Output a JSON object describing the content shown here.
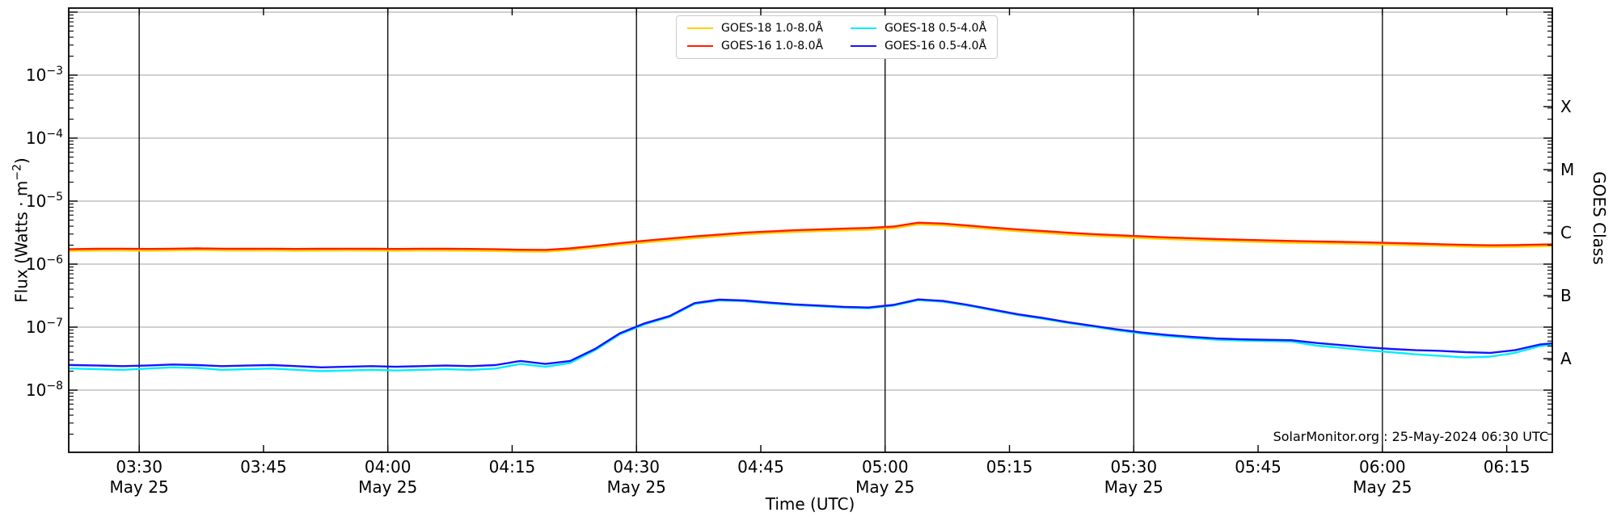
{
  "figure": {
    "xlabel": "Time (UTC)",
    "ylabel": {
      "pre": "Flux (Watts · m",
      "sup": "−2",
      "post": ")"
    },
    "right_axis_label": "GOES Class",
    "attribution": "SolarMonitor.org : 25-May-2024 06:30 UTC"
  },
  "legend": {
    "items": [
      {
        "label": "GOES-18 1.0-8.0Å",
        "color": "#ffd000"
      },
      {
        "label": "GOES-16 1.0-8.0Å",
        "color": "#ff1e00"
      },
      {
        "label": "GOES-18 0.5-4.0Å",
        "color": "#00eeff"
      },
      {
        "label": "GOES-16 0.5-4.0Å",
        "color": "#1515ff"
      }
    ]
  },
  "chart_data": {
    "type": "line",
    "title": "",
    "xlabel": "Time (UTC)",
    "ylabel": "Flux (Watts · m−2)",
    "x_axis_date": "May 25",
    "x_range_minutes": [
      201.5,
      380.5
    ],
    "ylim": [
      1e-09,
      0.0116
    ],
    "y_scale": "log",
    "grid": {
      "horizontal_color": "#b3b3b3",
      "vertical_color": "#000000"
    },
    "x_ticks": [
      {
        "t": 210,
        "label": "03:30",
        "sub": "May 25"
      },
      {
        "t": 225,
        "label": "03:45"
      },
      {
        "t": 240,
        "label": "04:00",
        "sub": "May 25"
      },
      {
        "t": 255,
        "label": "04:15"
      },
      {
        "t": 270,
        "label": "04:30",
        "sub": "May 25"
      },
      {
        "t": 285,
        "label": "04:45"
      },
      {
        "t": 300,
        "label": "05:00",
        "sub": "May 25"
      },
      {
        "t": 315,
        "label": "05:15"
      },
      {
        "t": 330,
        "label": "05:30",
        "sub": "May 25"
      },
      {
        "t": 345,
        "label": "05:45"
      },
      {
        "t": 360,
        "label": "06:00",
        "sub": "May 25"
      },
      {
        "t": 375,
        "label": "06:15"
      }
    ],
    "y_tick_exponents": [
      -3,
      -4,
      -5,
      -6,
      -7,
      -8
    ],
    "y_gridline_exponents": [
      -2,
      -3,
      -4,
      -5,
      -6,
      -7,
      -8
    ],
    "goes_classes": [
      {
        "label": "X",
        "log10_flux": -3.5
      },
      {
        "label": "M",
        "log10_flux": -4.5
      },
      {
        "label": "C",
        "log10_flux": -5.5
      },
      {
        "label": "B",
        "log10_flux": -6.5
      },
      {
        "label": "A",
        "log10_flux": -7.5
      }
    ],
    "x_minutes": [
      201,
      202,
      205,
      208,
      211,
      214,
      217,
      220,
      223,
      226,
      229,
      232,
      235,
      238,
      241,
      244,
      247,
      250,
      253,
      256,
      259,
      262,
      265,
      268,
      271,
      274,
      277,
      280,
      283,
      286,
      289,
      292,
      295,
      298,
      301,
      304,
      307,
      310,
      313,
      316,
      319,
      322,
      325,
      328,
      331,
      334,
      337,
      340,
      343,
      346,
      349,
      352,
      355,
      358,
      361,
      364,
      367,
      370,
      373,
      376,
      379,
      381
    ],
    "series": [
      {
        "name": "GOES-18 1.0-8.0Å",
        "color": "#ffd000",
        "width": 3.2,
        "values": [
          1.63e-06,
          1.64e-06,
          1.66e-06,
          1.67e-06,
          1.65e-06,
          1.67e-06,
          1.69e-06,
          1.67e-06,
          1.66e-06,
          1.67e-06,
          1.65e-06,
          1.66e-06,
          1.67e-06,
          1.66e-06,
          1.65e-06,
          1.67e-06,
          1.66e-06,
          1.65e-06,
          1.63e-06,
          1.61e-06,
          1.6e-06,
          1.69e-06,
          1.85e-06,
          2.04e-06,
          2.23e-06,
          2.42e-06,
          2.61e-06,
          2.8e-06,
          2.99e-06,
          3.14e-06,
          3.28e-06,
          3.37e-06,
          3.47e-06,
          3.56e-06,
          3.75e-06,
          4.32e-06,
          4.18e-06,
          3.9e-06,
          3.61e-06,
          3.37e-06,
          3.18e-06,
          2.99e-06,
          2.85e-06,
          2.74e-06,
          2.62e-06,
          2.53e-06,
          2.45e-06,
          2.38e-06,
          2.32e-06,
          2.26e-06,
          2.21e-06,
          2.18e-06,
          2.14e-06,
          2.1e-06,
          2.06e-06,
          2.01e-06,
          1.97e-06,
          1.92e-06,
          1.89e-06,
          1.91e-06,
          1.94e-06,
          1.96e-06
        ]
      },
      {
        "name": "GOES-16 1.0-8.0Å",
        "color": "#ff1e00",
        "width": 2.4,
        "values": [
          1.72e-06,
          1.73e-06,
          1.75e-06,
          1.76e-06,
          1.74e-06,
          1.76e-06,
          1.78e-06,
          1.76e-06,
          1.75e-06,
          1.76e-06,
          1.74e-06,
          1.75e-06,
          1.76e-06,
          1.75e-06,
          1.74e-06,
          1.76e-06,
          1.75e-06,
          1.74e-06,
          1.72e-06,
          1.69e-06,
          1.68e-06,
          1.78e-06,
          1.95e-06,
          2.15e-06,
          2.35e-06,
          2.55e-06,
          2.75e-06,
          2.95e-06,
          3.15e-06,
          3.3e-06,
          3.45e-06,
          3.55e-06,
          3.65e-06,
          3.75e-06,
          3.95e-06,
          4.55e-06,
          4.4e-06,
          4.1e-06,
          3.8e-06,
          3.55e-06,
          3.35e-06,
          3.15e-06,
          3e-06,
          2.88e-06,
          2.76e-06,
          2.66e-06,
          2.58e-06,
          2.5e-06,
          2.44e-06,
          2.38e-06,
          2.33e-06,
          2.29e-06,
          2.25e-06,
          2.21e-06,
          2.17e-06,
          2.12e-06,
          2.07e-06,
          2.02e-06,
          1.99e-06,
          2.01e-06,
          2.04e-06,
          2.06e-06
        ]
      },
      {
        "name": "GOES-18 0.5-4.0Å",
        "color": "#00eeff",
        "width": 2.4,
        "values": [
          2.22e-08,
          2.2e-08,
          2.15e-08,
          2.1e-08,
          2.2e-08,
          2.3e-08,
          2.25e-08,
          2.1e-08,
          2.15e-08,
          2.2e-08,
          2.1e-08,
          2e-08,
          2.05e-08,
          2.1e-08,
          2.05e-08,
          2.1e-08,
          2.15e-08,
          2.1e-08,
          2.2e-08,
          2.6e-08,
          2.35e-08,
          2.7e-08,
          4.3e-08,
          7.7e-08,
          1.11e-07,
          1.45e-07,
          2.33e-07,
          2.66e-07,
          2.58e-07,
          2.38e-07,
          2.24e-07,
          2.14e-07,
          2.04e-07,
          1.99e-07,
          2.19e-07,
          2.68e-07,
          2.53e-07,
          2.19e-07,
          1.85e-07,
          1.56e-07,
          1.36e-07,
          1.17e-07,
          1.02e-07,
          8.9e-08,
          7.9e-08,
          7.2e-08,
          6.7e-08,
          6.3e-08,
          6.1e-08,
          6e-08,
          5.9e-08,
          5.1e-08,
          4.7e-08,
          4.3e-08,
          4e-08,
          3.7e-08,
          3.5e-08,
          3.3e-08,
          3.4e-08,
          3.9e-08,
          5e-08,
          5.4e-08
        ]
      },
      {
        "name": "GOES-16 0.5-4.0Å",
        "color": "#1515ff",
        "width": 2.4,
        "values": [
          2.52e-08,
          2.5e-08,
          2.45e-08,
          2.4e-08,
          2.45e-08,
          2.55e-08,
          2.5e-08,
          2.4e-08,
          2.45e-08,
          2.5e-08,
          2.4e-08,
          2.3e-08,
          2.35e-08,
          2.4e-08,
          2.35e-08,
          2.4e-08,
          2.45e-08,
          2.4e-08,
          2.5e-08,
          2.9e-08,
          2.6e-08,
          2.9e-08,
          4.5e-08,
          8e-08,
          1.15e-07,
          1.5e-07,
          2.4e-07,
          2.73e-07,
          2.65e-07,
          2.45e-07,
          2.3e-07,
          2.2e-07,
          2.1e-07,
          2.05e-07,
          2.25e-07,
          2.75e-07,
          2.6e-07,
          2.25e-07,
          1.9e-07,
          1.6e-07,
          1.4e-07,
          1.2e-07,
          1.05e-07,
          9.2e-08,
          8.2e-08,
          7.5e-08,
          7e-08,
          6.6e-08,
          6.4e-08,
          6.3e-08,
          6.2e-08,
          5.6e-08,
          5.2e-08,
          4.8e-08,
          4.5e-08,
          4.3e-08,
          4.2e-08,
          4e-08,
          3.9e-08,
          4.3e-08,
          5.3e-08,
          5.6e-08
        ]
      }
    ]
  }
}
